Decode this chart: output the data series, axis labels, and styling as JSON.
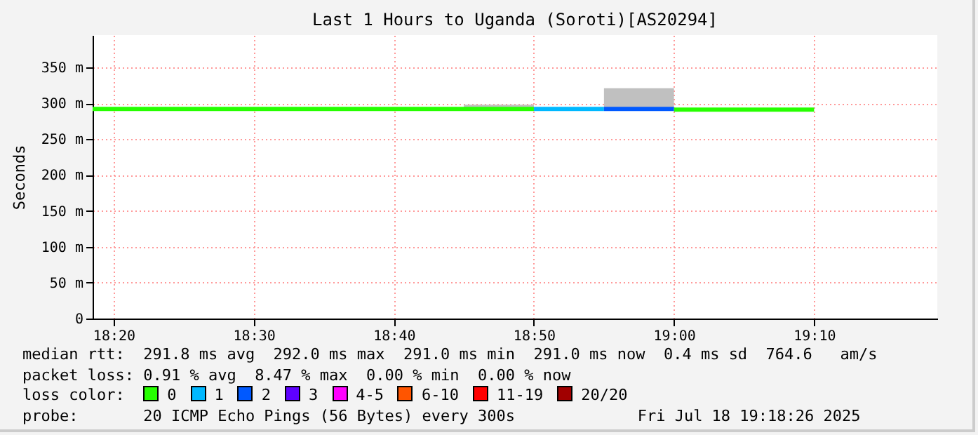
{
  "chart_data": {
    "type": "line",
    "title": "Last 1 Hours to Uganda (Soroti)[AS20294]",
    "ylabel": "Seconds",
    "xlim": [
      18.3083,
      19.3133
    ],
    "ylim": [
      0,
      395
    ],
    "xticks": [
      {
        "value": 18.3333,
        "label": "18:20"
      },
      {
        "value": 18.5,
        "label": "18:30"
      },
      {
        "value": 18.6667,
        "label": "18:40"
      },
      {
        "value": 18.8333,
        "label": "18:50"
      },
      {
        "value": 19.0,
        "label": "19:00"
      },
      {
        "value": 19.1667,
        "label": "19:10"
      }
    ],
    "yticks": [
      {
        "value": 0,
        "label": "0"
      },
      {
        "value": 50,
        "label": "50 m"
      },
      {
        "value": 100,
        "label": "100 m"
      },
      {
        "value": 150,
        "label": "150 m"
      },
      {
        "value": 200,
        "label": "200 m"
      },
      {
        "value": 250,
        "label": "250 m"
      },
      {
        "value": 300,
        "label": "300 m"
      },
      {
        "value": 350,
        "label": "350 m"
      }
    ],
    "grid": true,
    "legend": "bottom",
    "legend_title": "loss color:",
    "series": [
      {
        "type": "area",
        "color": "#c0c0c0",
        "x": [
          18.75,
          18.8333,
          18.875,
          18.9167,
          19.0
        ],
        "lower": [
          292,
          292,
          null,
          292,
          292
        ],
        "upper": [
          298,
          298,
          null,
          321,
          321
        ],
        "values": [
          null,
          null,
          null,
          null,
          null
        ]
      },
      {
        "name": "0",
        "color": "#26ff00",
        "x": [
          18.3083,
          18.8333,
          18.9167,
          19.0,
          19.1667
        ],
        "values": [
          292,
          292,
          null,
          291,
          291
        ]
      },
      {
        "name": "1",
        "color": "#00b8ff",
        "x": [
          18.8333,
          18.9167
        ],
        "values": [
          292,
          292
        ]
      },
      {
        "name": "2",
        "color": "#0059ff",
        "x": [
          18.9167,
          19.0
        ],
        "values": [
          292,
          292
        ]
      },
      {
        "name": "3",
        "color": "#5e00ff"
      },
      {
        "name": "4-5",
        "color": "#ff00ff"
      },
      {
        "name": "6-10",
        "color": "#ff5500"
      },
      {
        "name": "11-19",
        "color": "#ff0000"
      },
      {
        "name": "20/20",
        "color": "#a10000"
      }
    ],
    "annotations": [
      "median rtt:  291.8 ms avg  292.0 ms max  291.0 ms min  291.0 ms now  0.4 ms sd  764.6   am/s",
      "packet loss: 0.91 % avg  8.47 % max  0.00 % min  0.00 % now",
      "probe:       20 ICMP Echo Pings (56 Bytes) every 300s",
      "Fri Jul 18 19:18:26 2025"
    ]
  }
}
